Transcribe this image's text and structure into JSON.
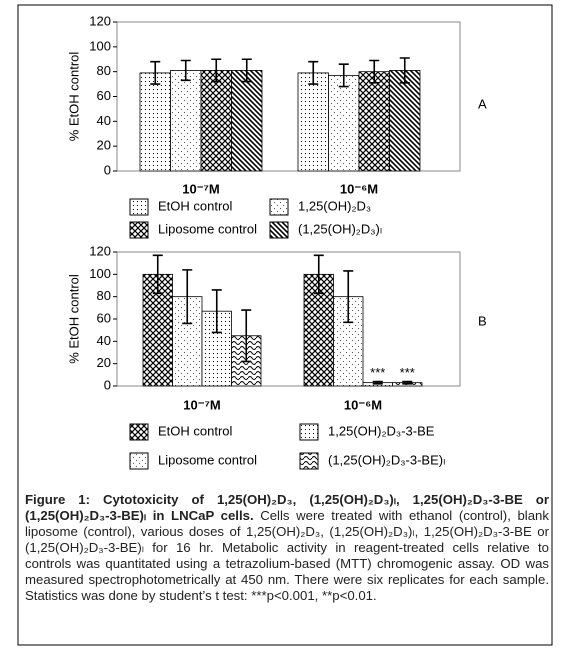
{
  "chart_data": [
    {
      "type": "bar",
      "panel_label": "A",
      "y_label": "% EtOH control",
      "categories": [
        "10⁻⁷M",
        "10⁻⁶M"
      ],
      "ylim": [
        0,
        120
      ],
      "yticks": [
        0,
        20,
        40,
        60,
        80,
        100,
        120
      ],
      "grid": false,
      "series": [
        {
          "name": "EtOH control",
          "pattern": "dots",
          "color": "#000000",
          "values": [
            79,
            79
          ],
          "errors": [
            9,
            9
          ]
        },
        {
          "name": "1,25(OH)₂D₃",
          "pattern": "fine-dots",
          "color": "#000000",
          "values": [
            81,
            77
          ],
          "errors": [
            8,
            9
          ]
        },
        {
          "name": "Liposome control",
          "pattern": "crosshatch",
          "color": "#000000",
          "values": [
            81,
            80
          ],
          "errors": [
            9,
            9
          ]
        },
        {
          "name": "(1,25(OH)₂D₃)ₗ",
          "pattern": "diagonal",
          "color": "#000000",
          "values": [
            81,
            81
          ],
          "errors": [
            9,
            10
          ]
        }
      ]
    },
    {
      "type": "bar",
      "panel_label": "B",
      "y_label": "% EtOH control",
      "categories": [
        "10⁻⁷M",
        "10⁻⁶M"
      ],
      "ylim": [
        0,
        120
      ],
      "yticks": [
        0,
        20,
        40,
        60,
        80,
        100,
        120
      ],
      "grid": false,
      "annotations": [
        "***",
        "***"
      ],
      "series": [
        {
          "name": "EtOH control",
          "pattern": "crosshatch",
          "color": "#000000",
          "values": [
            100,
            100
          ],
          "errors": [
            17,
            17
          ]
        },
        {
          "name": "Liposome control",
          "pattern": "fine-dots",
          "color": "#000000",
          "values": [
            80,
            80
          ],
          "errors": [
            24,
            23
          ]
        },
        {
          "name": "1,25(OH)₂D₃-3-BE",
          "pattern": "dots",
          "color": "#000000",
          "values": [
            67,
            3
          ],
          "errors": [
            19,
            1
          ]
        },
        {
          "name": "(1,25(OH)₂D₃-3-BE)ₗ",
          "pattern": "waves",
          "color": "#000000",
          "values": [
            45,
            3
          ],
          "errors": [
            23,
            1
          ]
        }
      ]
    }
  ],
  "caption": {
    "title": "Figure 1: Cytotoxicity of 1,25(OH)₂D₃, (1,25(OH)₂D₃)ₗ, 1,25(OH)₂D₃-3-BE or (1,25(OH)₂D₃-3-BE)ₗ in LNCaP cells.",
    "text": "Cells were treated with ethanol (control), blank liposome (control), various doses of 1,25(OH)₂D₃, (1,25(OH)₂D₃)ₗ, 1,25(OH)₂D₃-3-BE or (1,25(OH)₂D₃-3-BE)ₗ for 16 hr. Metabolic activity in reagent-treated cells relative to controls was quantitated using a tetrazolium-based (MTT) chromogenic assay. OD was measured spectrophotometrically at 450 nm. There were six replicates for each sample. Statistics was done by student’s t test: ***p<0.001, **p<0.01."
  }
}
